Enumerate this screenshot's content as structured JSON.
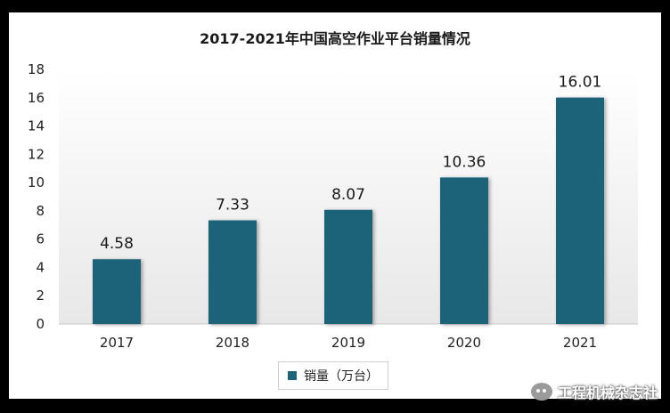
{
  "chart_data": {
    "type": "bar",
    "title": "2017-2021年中国高空作业平台销量情况",
    "categories": [
      "2017",
      "2018",
      "2019",
      "2020",
      "2021"
    ],
    "series": [
      {
        "name": "销量（万台）",
        "values": [
          4.58,
          7.33,
          8.07,
          10.36,
          16.01
        ]
      }
    ],
    "value_labels": [
      "4.58",
      "7.33",
      "8.07",
      "10.36",
      "16.01"
    ],
    "ylim": [
      0,
      18
    ],
    "yticks": [
      0,
      2,
      4,
      6,
      8,
      10,
      12,
      14,
      16,
      18
    ],
    "legend_position": "bottom-center",
    "grid": false,
    "bar_color": "#1f637a",
    "plot_bg": "#efefef"
  },
  "watermark": {
    "text": "工程机械杂志社",
    "icon": "wechat-icon"
  }
}
